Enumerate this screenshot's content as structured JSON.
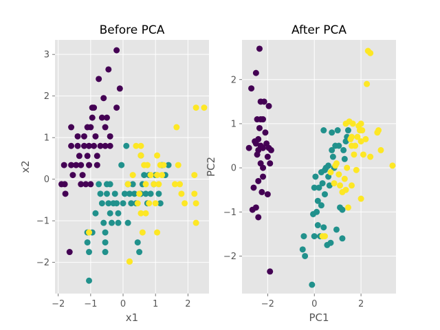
{
  "chart_data": [
    {
      "type": "scatter",
      "title": "Before PCA",
      "xlabel": "x1",
      "ylabel": "x2",
      "xlim": [
        -2.1,
        2.65
      ],
      "ylim": [
        -2.75,
        3.35
      ],
      "xticks": [
        -2,
        -1,
        0,
        1,
        2
      ],
      "yticks": [
        -2,
        -1,
        0,
        1,
        2,
        3
      ],
      "grid": true,
      "series": [
        {
          "color": "#440154",
          "points": [
            [
              -1.9,
              -0.12
            ],
            [
              -1.8,
              -0.12
            ],
            [
              -1.82,
              0.34
            ],
            [
              -1.78,
              -0.35
            ],
            [
              -1.65,
              -1.75
            ],
            [
              -1.6,
              1.25
            ],
            [
              -1.6,
              0.8
            ],
            [
              -1.6,
              0.34
            ],
            [
              -1.55,
              0.1
            ],
            [
              -1.45,
              0.34
            ],
            [
              -1.4,
              0.8
            ],
            [
              -1.4,
              1.03
            ],
            [
              -1.35,
              0.56
            ],
            [
              -1.3,
              0.34
            ],
            [
              -1.3,
              -0.12
            ],
            [
              -1.25,
              0.1
            ],
            [
              -1.2,
              0.8
            ],
            [
              -1.2,
              1.03
            ],
            [
              -1.15,
              -0.12
            ],
            [
              -1.1,
              1.25
            ],
            [
              -1.1,
              0.56
            ],
            [
              -1.05,
              0.8
            ],
            [
              -1.05,
              0.34
            ],
            [
              -1.0,
              1.25
            ],
            [
              -1.0,
              -0.12
            ],
            [
              -0.95,
              1.72
            ],
            [
              -0.95,
              1.48
            ],
            [
              -0.9,
              1.72
            ],
            [
              -0.9,
              0.8
            ],
            [
              -0.85,
              1.03
            ],
            [
              -0.8,
              0.56
            ],
            [
              -0.8,
              0.34
            ],
            [
              -0.75,
              2.41
            ],
            [
              -0.7,
              0.8
            ],
            [
              -0.65,
              1.48
            ],
            [
              -0.6,
              1.95
            ],
            [
              -0.55,
              1.25
            ],
            [
              -0.55,
              0.8
            ],
            [
              -0.5,
              1.48
            ],
            [
              -0.45,
              2.64
            ],
            [
              -0.4,
              1.03
            ],
            [
              -0.4,
              0.8
            ],
            [
              -0.2,
              1.72
            ],
            [
              -0.2,
              3.1
            ],
            [
              -0.1,
              2.18
            ]
          ]
        },
        {
          "color": "#21918c",
          "points": [
            [
              -1.1,
              -1.28
            ],
            [
              -1.1,
              -1.52
            ],
            [
              -1.05,
              -1.75
            ],
            [
              -1.05,
              -2.44
            ],
            [
              -0.95,
              -1.28
            ],
            [
              -0.85,
              -0.82
            ],
            [
              -0.75,
              -0.12
            ],
            [
              -0.7,
              -0.35
            ],
            [
              -0.65,
              -0.58
            ],
            [
              -0.6,
              -1.05
            ],
            [
              -0.55,
              -1.28
            ],
            [
              -0.55,
              -1.52
            ],
            [
              -0.55,
              -1.75
            ],
            [
              -0.5,
              -0.35
            ],
            [
              -0.5,
              -0.12
            ],
            [
              -0.45,
              -0.58
            ],
            [
              -0.4,
              -0.82
            ],
            [
              -0.4,
              -0.12
            ],
            [
              -0.35,
              -1.05
            ],
            [
              -0.3,
              -0.58
            ],
            [
              -0.25,
              -0.35
            ],
            [
              -0.2,
              -0.58
            ],
            [
              -0.15,
              -0.82
            ],
            [
              -0.15,
              -1.05
            ],
            [
              -0.05,
              0.34
            ],
            [
              0.0,
              -0.58
            ],
            [
              0.05,
              -0.35
            ],
            [
              0.1,
              0.8
            ],
            [
              0.15,
              -0.12
            ],
            [
              0.15,
              -1.05
            ],
            [
              0.2,
              -0.35
            ],
            [
              0.25,
              -0.58
            ],
            [
              0.3,
              -0.12
            ],
            [
              0.35,
              -0.35
            ],
            [
              0.4,
              -0.58
            ],
            [
              0.45,
              -1.52
            ],
            [
              0.5,
              -1.75
            ],
            [
              0.55,
              0.57
            ],
            [
              0.55,
              -0.35
            ],
            [
              0.6,
              -0.12
            ],
            [
              0.65,
              0.1
            ],
            [
              0.7,
              -0.35
            ],
            [
              0.75,
              -0.58
            ],
            [
              0.8,
              0.1
            ],
            [
              0.85,
              -0.35
            ],
            [
              0.95,
              -0.12
            ],
            [
              1.0,
              0.1
            ],
            [
              1.1,
              -0.35
            ],
            [
              1.15,
              -0.58
            ],
            [
              1.2,
              0.34
            ],
            [
              1.3,
              0.1
            ],
            [
              1.4,
              0.34
            ]
          ]
        },
        {
          "color": "#fde725",
          "points": [
            [
              -1.05,
              -1.28
            ],
            [
              0.15,
              -0.12
            ],
            [
              0.2,
              -1.98
            ],
            [
              0.3,
              0.1
            ],
            [
              0.4,
              0.8
            ],
            [
              0.45,
              -0.58
            ],
            [
              0.5,
              -0.35
            ],
            [
              0.55,
              0.8
            ],
            [
              0.55,
              0.57
            ],
            [
              0.55,
              -0.82
            ],
            [
              0.6,
              -1.28
            ],
            [
              0.65,
              0.34
            ],
            [
              0.7,
              -0.82
            ],
            [
              0.7,
              -0.12
            ],
            [
              0.75,
              0.34
            ],
            [
              0.8,
              -0.58
            ],
            [
              0.85,
              0.1
            ],
            [
              0.95,
              -0.12
            ],
            [
              1.0,
              -0.58
            ],
            [
              1.05,
              0.1
            ],
            [
              1.05,
              0.57
            ],
            [
              1.05,
              -1.28
            ],
            [
              1.1,
              -0.12
            ],
            [
              1.15,
              0.34
            ],
            [
              1.2,
              0.1
            ],
            [
              1.25,
              0.34
            ],
            [
              1.6,
              -0.12
            ],
            [
              1.65,
              1.25
            ],
            [
              1.7,
              0.34
            ],
            [
              1.75,
              -0.12
            ],
            [
              1.8,
              -0.35
            ],
            [
              1.9,
              -0.58
            ],
            [
              2.2,
              0.1
            ],
            [
              2.2,
              -0.35
            ],
            [
              2.25,
              -0.58
            ],
            [
              2.25,
              -1.05
            ],
            [
              2.25,
              1.72
            ],
            [
              2.5,
              1.72
            ],
            [
              0.2,
              -1.98
            ],
            [
              0.55,
              0.57
            ]
          ]
        }
      ]
    },
    {
      "type": "scatter",
      "title": "After PCA",
      "xlabel": "PC1",
      "ylabel": "PC2",
      "xlim": [
        -3.1,
        3.5
      ],
      "ylim": [
        -2.85,
        2.9
      ],
      "xticks": [
        -2,
        0,
        2
      ],
      "yticks": [
        -2,
        -1,
        0,
        1,
        2
      ],
      "grid": true,
      "series": [
        {
          "color": "#440154",
          "points": [
            [
              -2.8,
              0.45
            ],
            [
              -2.7,
              1.8
            ],
            [
              -2.65,
              -0.95
            ],
            [
              -2.6,
              -0.45
            ],
            [
              -2.55,
              0.6
            ],
            [
              -2.5,
              2.15
            ],
            [
              -2.5,
              -0.9
            ],
            [
              -2.45,
              1.1
            ],
            [
              -2.45,
              0.3
            ],
            [
              -2.4,
              0.65
            ],
            [
              -2.4,
              -0.3
            ],
            [
              -2.4,
              -1.12
            ],
            [
              -2.35,
              2.7
            ],
            [
              -2.35,
              0.9
            ],
            [
              -2.3,
              1.5
            ],
            [
              -2.3,
              0.5
            ],
            [
              -2.3,
              0.1
            ],
            [
              -2.25,
              -0.55
            ],
            [
              -2.2,
              1.1
            ],
            [
              -2.2,
              0.45
            ],
            [
              -2.2,
              -0.2
            ],
            [
              -2.15,
              1.5
            ],
            [
              -2.1,
              0.8
            ],
            [
              -2.05,
              0.55
            ],
            [
              -2.0,
              0.25
            ],
            [
              -2.0,
              -0.6
            ],
            [
              -1.95,
              1.4
            ],
            [
              -1.95,
              0.45
            ],
            [
              -1.9,
              -2.35
            ],
            [
              -1.9,
              0.1
            ],
            [
              -1.85,
              0.4
            ],
            [
              -2.4,
              0.4
            ],
            [
              -2.3,
              1.1
            ],
            [
              -2.5,
              0.55
            ],
            [
              -2.2,
              0.0
            ]
          ]
        },
        {
          "color": "#21918c",
          "points": [
            [
              -0.5,
              -1.85
            ],
            [
              -0.45,
              -1.55
            ],
            [
              -0.4,
              -2.0
            ],
            [
              -0.1,
              -2.65
            ],
            [
              -0.05,
              -1.05
            ],
            [
              0.0,
              -1.55
            ],
            [
              0.0,
              -0.45
            ],
            [
              0.05,
              -0.2
            ],
            [
              0.1,
              -1.0
            ],
            [
              0.15,
              -0.75
            ],
            [
              0.15,
              -1.3
            ],
            [
              0.2,
              -0.45
            ],
            [
              0.25,
              -1.55
            ],
            [
              0.3,
              -0.1
            ],
            [
              0.3,
              -0.85
            ],
            [
              0.35,
              -0.35
            ],
            [
              0.4,
              0.85
            ],
            [
              0.4,
              -1.35
            ],
            [
              0.45,
              -0.05
            ],
            [
              0.45,
              -0.6
            ],
            [
              0.5,
              0.0
            ],
            [
              0.55,
              -1.75
            ],
            [
              0.6,
              0.05
            ],
            [
              0.6,
              -0.2
            ],
            [
              0.65,
              -0.4
            ],
            [
              0.7,
              -1.7
            ],
            [
              0.75,
              0.8
            ],
            [
              0.75,
              0.4
            ],
            [
              0.8,
              0.25
            ],
            [
              0.85,
              0.0
            ],
            [
              0.9,
              0.5
            ],
            [
              0.95,
              -1.4
            ],
            [
              1.0,
              0.85
            ],
            [
              1.05,
              0.5
            ],
            [
              1.1,
              -0.9
            ],
            [
              1.2,
              -1.6
            ],
            [
              1.2,
              -0.95
            ],
            [
              1.25,
              0.4
            ],
            [
              1.3,
              0.2
            ],
            [
              1.35,
              0.6
            ],
            [
              1.4,
              0.7
            ],
            [
              1.45,
              0.85
            ]
          ]
        },
        {
          "color": "#fde725",
          "points": [
            [
              0.35,
              -1.55
            ],
            [
              0.45,
              -1.55
            ],
            [
              0.7,
              -0.1
            ],
            [
              0.85,
              -0.35
            ],
            [
              0.9,
              0.05
            ],
            [
              0.95,
              0.1
            ],
            [
              1.05,
              -0.15
            ],
            [
              1.1,
              -0.4
            ],
            [
              1.2,
              -0.55
            ],
            [
              1.3,
              -0.25
            ],
            [
              1.35,
              1.0
            ],
            [
              1.35,
              -0.5
            ],
            [
              1.4,
              0.0
            ],
            [
              1.45,
              -0.9
            ],
            [
              1.5,
              1.05
            ],
            [
              1.55,
              0.65
            ],
            [
              1.6,
              -0.4
            ],
            [
              1.6,
              0.7
            ],
            [
              1.65,
              1.0
            ],
            [
              1.7,
              0.3
            ],
            [
              1.75,
              0.5
            ],
            [
              1.8,
              -0.05
            ],
            [
              1.85,
              0.7
            ],
            [
              1.9,
              0.95
            ],
            [
              1.95,
              0.85
            ],
            [
              2.0,
              1.0
            ],
            [
              2.0,
              -0.7
            ],
            [
              2.05,
              0.85
            ],
            [
              2.1,
              0.3
            ],
            [
              2.2,
              0.65
            ],
            [
              2.25,
              1.9
            ],
            [
              2.3,
              2.65
            ],
            [
              2.4,
              2.6
            ],
            [
              2.4,
              0.25
            ],
            [
              2.7,
              0.8
            ],
            [
              2.75,
              0.85
            ],
            [
              2.85,
              0.4
            ],
            [
              3.35,
              0.05
            ],
            [
              1.6,
              0.5
            ],
            [
              2.0,
              0.6
            ]
          ]
        }
      ]
    }
  ]
}
